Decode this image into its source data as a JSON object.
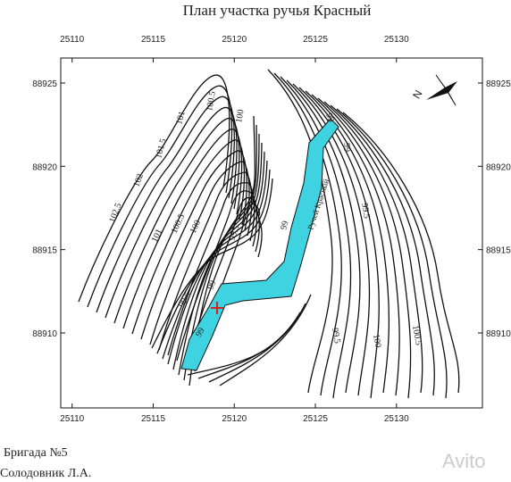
{
  "map": {
    "title": "План участка ручья Красный",
    "xlim": [
      25109.3,
      25135.3
    ],
    "ylim": [
      88905.5,
      88926.5
    ],
    "xticks": [
      25110,
      25115,
      25120,
      25125,
      25130
    ],
    "yticks": [
      88910,
      88915,
      88920,
      88925
    ],
    "stream_label": "Ручей Красный",
    "compass": "N",
    "contour_labels": [
      "101",
      "100.5",
      "100",
      "101.5",
      "102",
      "102.5",
      "101",
      "100.5",
      "100",
      "99.5",
      "99.5",
      "99",
      "99",
      "99",
      "99",
      "99.5",
      "100",
      "100.5",
      "99.5",
      "99"
    ],
    "footer": [
      "Бригада №5",
      "Солодовник Л.А."
    ],
    "watermark": "Avito"
  }
}
